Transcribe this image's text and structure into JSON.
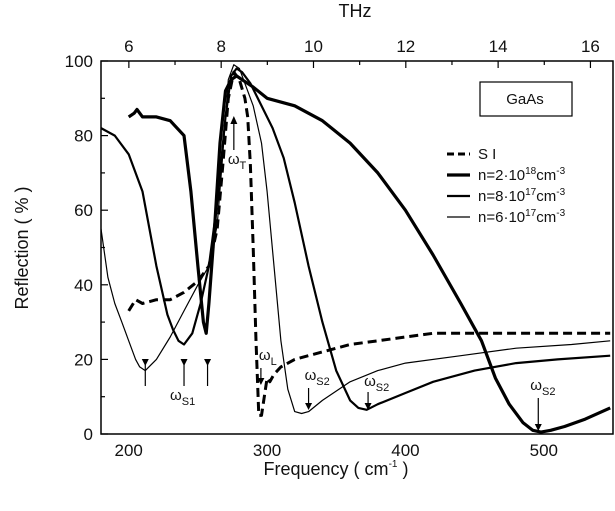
{
  "chart_data": {
    "type": "line",
    "xlabel": "Frequency ( cm",
    "xlabel_exp": "-1",
    "xlabel_end": " )",
    "ylabel": "Reflection  ( % )",
    "top_axis_label": "THz",
    "xlim": [
      180,
      550
    ],
    "ylim": [
      0,
      100
    ],
    "x_ticks": [
      200,
      300,
      400,
      500
    ],
    "y_ticks": [
      0,
      20,
      40,
      60,
      80,
      100
    ],
    "top_ticks": [
      6,
      8,
      10,
      12,
      14,
      16
    ],
    "sample_label": "GaAs",
    "series": [
      {
        "name": "S I",
        "style": "dashed",
        "width": 3,
        "x": [
          200,
          205,
          210,
          220,
          230,
          240,
          250,
          258,
          264,
          268,
          272,
          276,
          280,
          284,
          286,
          288,
          290,
          292,
          294,
          296,
          298,
          300,
          302,
          305,
          310,
          320,
          340,
          360,
          380,
          400,
          420,
          450,
          500,
          548
        ],
        "y": [
          33,
          36,
          35,
          36,
          36,
          38,
          41,
          45,
          55,
          72,
          90,
          97,
          95,
          90,
          85,
          72,
          50,
          25,
          5,
          5,
          10,
          15,
          14,
          16,
          18,
          20,
          22,
          24,
          25,
          26,
          27,
          27,
          27,
          27
        ]
      },
      {
        "name": "n=2·10^18cm^-3",
        "style": "solid",
        "width": 3.2,
        "x": [
          200,
          204,
          206,
          210,
          220,
          230,
          240,
          245,
          250,
          254,
          256,
          258,
          262,
          266,
          270,
          274,
          278,
          282,
          290,
          300,
          320,
          340,
          360,
          380,
          400,
          420,
          440,
          455,
          465,
          475,
          485,
          492,
          498,
          505,
          515,
          530,
          548
        ],
        "y": [
          85,
          86,
          87,
          85,
          85,
          84,
          80,
          65,
          45,
          30,
          27,
          35,
          55,
          78,
          92,
          95,
          96,
          95,
          93,
          90,
          88,
          84,
          78,
          70,
          60,
          48,
          35,
          25,
          15,
          8,
          3,
          1,
          0.5,
          1,
          2,
          4,
          7
        ]
      },
      {
        "name": "n=8·10^17cm^-3",
        "style": "solid",
        "width": 2.2,
        "x": [
          180,
          190,
          200,
          210,
          220,
          228,
          232,
          236,
          240,
          246,
          252,
          258,
          264,
          270,
          274,
          278,
          282,
          288,
          296,
          304,
          312,
          320,
          330,
          340,
          350,
          360,
          366,
          372,
          380,
          400,
          420,
          450,
          480,
          510,
          548
        ],
        "y": [
          82,
          80,
          75,
          65,
          45,
          32,
          28,
          25,
          24,
          27,
          35,
          45,
          62,
          85,
          96,
          98,
          97,
          94,
          88,
          82,
          74,
          62,
          45,
          30,
          17,
          9,
          7,
          6.5,
          8,
          11,
          14,
          17,
          19,
          20,
          21
        ]
      },
      {
        "name": "n=6·10^17cm^-3",
        "style": "solid",
        "width": 1.2,
        "x": [
          180,
          185,
          190,
          195,
          200,
          205,
          208,
          212,
          220,
          230,
          240,
          250,
          258,
          264,
          268,
          272,
          276,
          280,
          284,
          290,
          296,
          300,
          305,
          310,
          315,
          320,
          325,
          330,
          340,
          360,
          380,
          400,
          440,
          480,
          520,
          548
        ],
        "y": [
          55,
          42,
          35,
          30,
          25,
          20,
          18,
          17,
          20,
          26,
          33,
          40,
          45,
          56,
          75,
          95,
          99,
          98,
          94,
          88,
          78,
          65,
          45,
          25,
          12,
          6,
          5.5,
          6,
          9,
          14,
          17,
          19,
          21,
          23,
          24,
          25
        ]
      }
    ],
    "annotations": [
      {
        "label": "ω",
        "sub": "T",
        "x": 276,
        "y": 88
      },
      {
        "label": "ω",
        "sub": "L",
        "x": 297,
        "y": 18
      },
      {
        "label": "ω",
        "sub": "S1",
        "x": 240,
        "y": 15
      },
      {
        "label": "ω",
        "sub": "S2",
        "x": 330,
        "y": 7
      },
      {
        "label": "ω",
        "sub": "S2",
        "x": 373,
        "y": 7
      },
      {
        "label": "ω",
        "sub": "S2",
        "x": 496,
        "y": 1
      }
    ]
  },
  "legend": [
    {
      "label": "S I"
    },
    {
      "label": "n=2·10",
      "exp": "18",
      "unit": "cm",
      "unit_exp": "-3"
    },
    {
      "label": "n=8·10",
      "exp": "17",
      "unit": "cm",
      "unit_exp": "-3"
    },
    {
      "label": "n=6·10",
      "exp": "17",
      "unit": "cm",
      "unit_exp": "-3"
    }
  ]
}
